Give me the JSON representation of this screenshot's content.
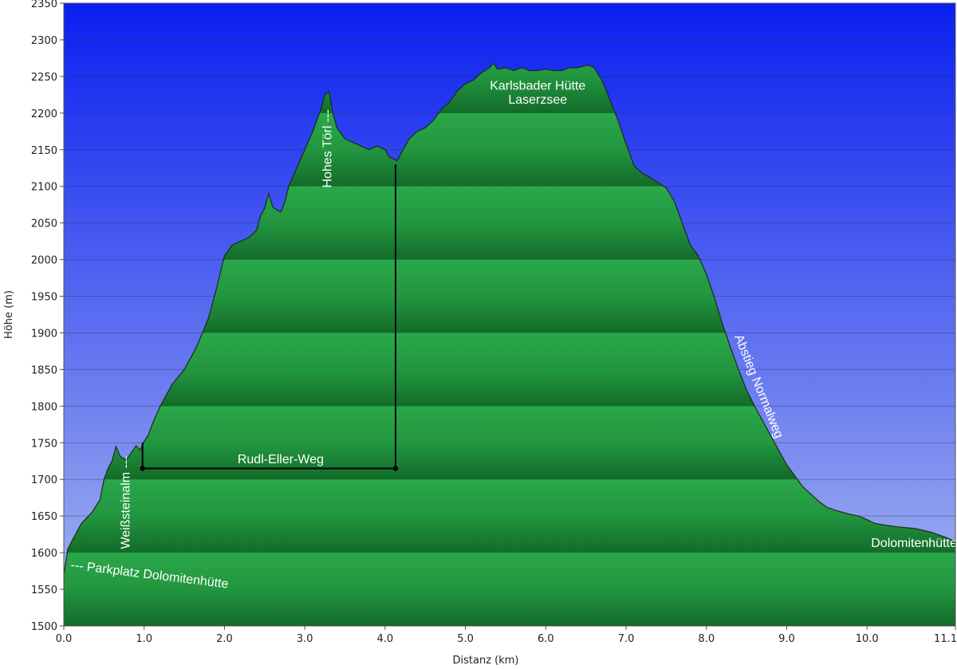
{
  "chart_data": {
    "type": "area",
    "xlabel": "Distanz  (km)",
    "ylabel": "Höhe (m)",
    "xlim": [
      0.0,
      11.1
    ],
    "ylim": [
      1500,
      2350
    ],
    "x_ticks": [
      0.0,
      1.0,
      2.0,
      3.0,
      4.0,
      5.0,
      6.0,
      7.0,
      8.0,
      9.0,
      10.0,
      11.1
    ],
    "x_tick_labels": [
      "0.0",
      "1.0",
      "2.0",
      "3.0",
      "4.0",
      "5.0",
      "6.0",
      "7.0",
      "8.0",
      "9.0",
      "10.0",
      "11.1"
    ],
    "y_ticks": [
      1500,
      1550,
      1600,
      1650,
      1700,
      1750,
      1800,
      1850,
      1900,
      1950,
      2000,
      2050,
      2100,
      2150,
      2200,
      2250,
      2300,
      2350
    ],
    "y_tick_labels": [
      "1500",
      "1550",
      "1600",
      "1650",
      "1700",
      "1750",
      "1800",
      "1850",
      "1900",
      "1950",
      "2000",
      "2050",
      "2100",
      "2150",
      "2200",
      "2250",
      "2300",
      "2350"
    ],
    "grid": true,
    "colors": {
      "sky_top": "#0a1ff0",
      "sky_bottom": "#a8b8f0",
      "terrain_light": "#2aa84a",
      "terrain_dark": "#136b2a",
      "outline": "#1a2a1a"
    },
    "profile": {
      "x": [
        0.0,
        0.05,
        0.12,
        0.22,
        0.35,
        0.45,
        0.5,
        0.55,
        0.6,
        0.65,
        0.7,
        0.75,
        0.8,
        0.85,
        0.9,
        0.95,
        1.0,
        1.05,
        1.1,
        1.2,
        1.35,
        1.5,
        1.65,
        1.8,
        1.9,
        2.0,
        2.1,
        2.2,
        2.3,
        2.4,
        2.45,
        2.5,
        2.55,
        2.6,
        2.65,
        2.7,
        2.75,
        2.8,
        2.9,
        3.0,
        3.1,
        3.2,
        3.25,
        3.3,
        3.35,
        3.4,
        3.5,
        3.6,
        3.7,
        3.8,
        3.9,
        4.0,
        4.05,
        4.1,
        4.15,
        4.2,
        4.3,
        4.4,
        4.5,
        4.6,
        4.7,
        4.8,
        4.9,
        5.0,
        5.1,
        5.2,
        5.3,
        5.35,
        5.4,
        5.5,
        5.6,
        5.7,
        5.8,
        5.9,
        6.0,
        6.1,
        6.2,
        6.3,
        6.4,
        6.5,
        6.55,
        6.6,
        6.7,
        6.8,
        6.9,
        7.0,
        7.1,
        7.2,
        7.3,
        7.4,
        7.5,
        7.6,
        7.7,
        7.8,
        7.9,
        8.0,
        8.1,
        8.2,
        8.3,
        8.4,
        8.5,
        8.6,
        8.7,
        8.8,
        8.9,
        9.0,
        9.1,
        9.2,
        9.3,
        9.4,
        9.5,
        9.6,
        9.7,
        9.8,
        9.9,
        10.0,
        10.1,
        10.2,
        10.4,
        10.6,
        10.8,
        11.0,
        11.1
      ],
      "y": [
        1570,
        1605,
        1620,
        1640,
        1655,
        1672,
        1700,
        1715,
        1725,
        1745,
        1732,
        1728,
        1730,
        1738,
        1746,
        1740,
        1752,
        1760,
        1775,
        1800,
        1830,
        1850,
        1880,
        1920,
        1960,
        2005,
        2020,
        2025,
        2030,
        2040,
        2060,
        2070,
        2090,
        2072,
        2068,
        2065,
        2078,
        2100,
        2125,
        2150,
        2175,
        2205,
        2225,
        2230,
        2200,
        2180,
        2165,
        2160,
        2155,
        2150,
        2155,
        2150,
        2140,
        2138,
        2135,
        2145,
        2165,
        2175,
        2180,
        2190,
        2205,
        2215,
        2230,
        2240,
        2245,
        2255,
        2262,
        2268,
        2260,
        2262,
        2258,
        2262,
        2258,
        2258,
        2260,
        2258,
        2258,
        2262,
        2262,
        2265,
        2265,
        2262,
        2245,
        2218,
        2190,
        2158,
        2128,
        2118,
        2112,
        2105,
        2098,
        2080,
        2050,
        2020,
        2005,
        1980,
        1948,
        1912,
        1880,
        1850,
        1822,
        1800,
        1780,
        1760,
        1740,
        1720,
        1705,
        1690,
        1680,
        1670,
        1662,
        1658,
        1655,
        1652,
        1650,
        1645,
        1640,
        1638,
        1635,
        1633,
        1628,
        1620,
        1615
      ]
    },
    "annotations": [
      {
        "text": "--- Parkplatz Dolomitenhütte",
        "x": 0.08,
        "y": 1578,
        "angle": 7
      },
      {
        "text": "Weißsteinalm ---",
        "x": 0.82,
        "y": 1605,
        "angle": -90
      },
      {
        "text": "Hohes Törl ---",
        "x": 3.33,
        "y": 2098,
        "angle": -90
      },
      {
        "text": "Karlsbader Hütte",
        "x": 5.9,
        "y": 2232,
        "angle": 0
      },
      {
        "text": "Laserzsee",
        "x": 5.9,
        "y": 2213,
        "angle": 0
      },
      {
        "text": "Abstieg Normalweg",
        "x": 8.35,
        "y": 1895,
        "angle": 68
      },
      {
        "text": "Dolomitenhütte (Parkplatz) ---",
        "x": 10.05,
        "y": 1608,
        "angle": 0
      },
      {
        "text": "Rudl-Eller-Weg",
        "x": 2.7,
        "y": 1722,
        "angle": 0
      }
    ],
    "markers": {
      "segment_line": {
        "x_start": 0.98,
        "x_end": 4.13,
        "y": 1715
      },
      "left_vertical": {
        "x": 0.98,
        "y_bottom": 1715,
        "y_top": 1750
      },
      "right_vertical": {
        "x": 4.13,
        "y_bottom": 1715,
        "y_top": 2130
      }
    }
  }
}
